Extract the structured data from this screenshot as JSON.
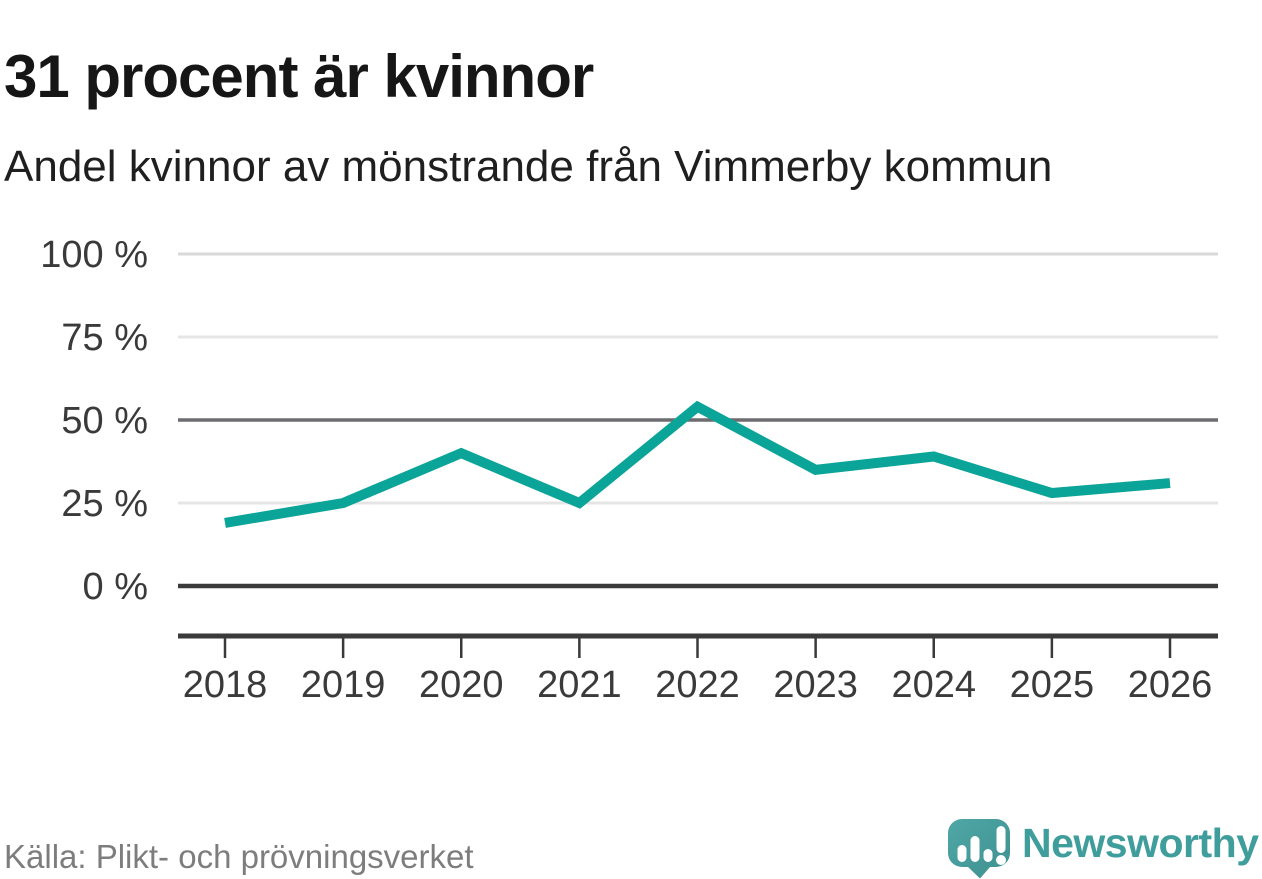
{
  "chart_data": {
    "type": "line",
    "title": "31 procent är kvinnor",
    "subtitle": "Andel kvinnor av mönstrande från Vimmerby kommun",
    "categories": [
      "2018",
      "2019",
      "2020",
      "2021",
      "2022",
      "2023",
      "2024",
      "2025",
      "2026"
    ],
    "values": [
      19,
      25,
      40,
      25,
      54,
      35,
      39,
      28,
      31
    ],
    "unit": "%",
    "xlabel": "",
    "ylabel": "",
    "ylim": [
      0,
      100
    ],
    "grid": true,
    "legend": "none",
    "line_color": "#0ba498",
    "yticks": [
      {
        "value": 100,
        "label": "100 %",
        "style": "light100"
      },
      {
        "value": 75,
        "label": "75 %",
        "style": "light"
      },
      {
        "value": 50,
        "label": "50 %",
        "style": "mid"
      },
      {
        "value": 25,
        "label": "25 %",
        "style": "light"
      },
      {
        "value": 0,
        "label": "0 %",
        "style": "strong"
      }
    ]
  },
  "footer": {
    "source": "Källa: Plikt- och prövningsverket",
    "brand": "Newsworthy"
  },
  "colors": {
    "accent_line": "#0ba498",
    "grid_light": "#e5e5e5",
    "grid_100": "#d9d9d9",
    "grid_mid": "#6c6c71",
    "axis_dark": "#3a3a3a",
    "text_title": "#161616",
    "text_axis": "#3a3a3a",
    "text_muted": "#7d7d7d",
    "logo_teal": "#4aa3a2",
    "logo_teal_dark": "#3e9190",
    "brand_text_teal": "#3f9d9c",
    "logo_glyph_white": "#ffffff"
  },
  "icons": {
    "logo_mark": "bar-chart-speech-bubble-icon"
  }
}
